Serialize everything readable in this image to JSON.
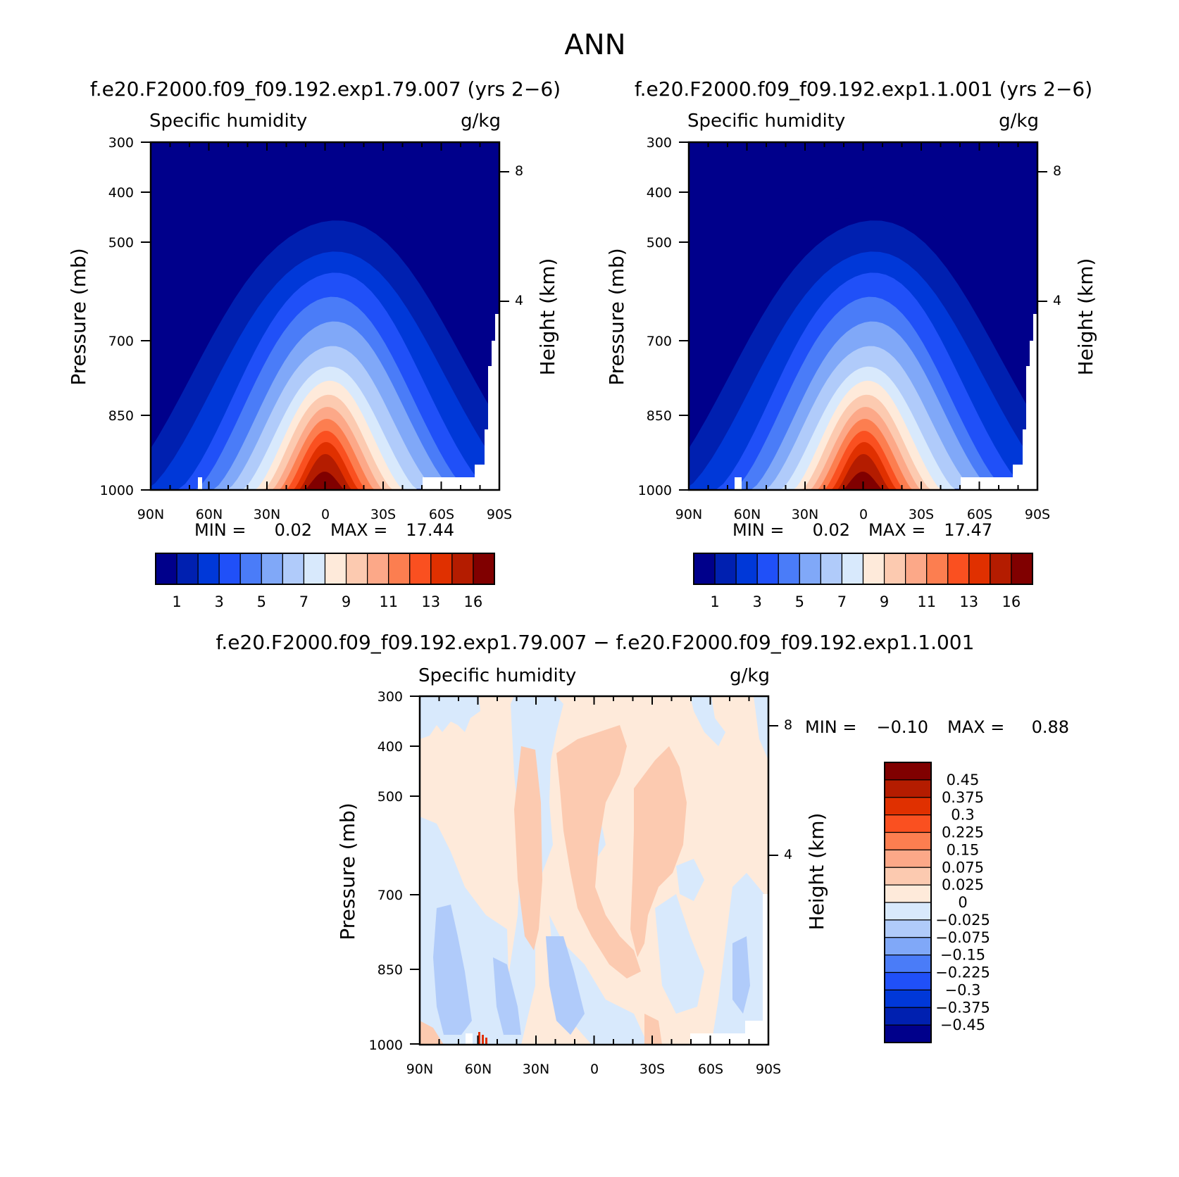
{
  "figure": {
    "title": "ANN",
    "diff_title": "f.e20.F2000.f09_f09.192.exp1.79.007 − f.e20.F2000.f09_f09.192.exp1.1.001"
  },
  "chart_data": [
    {
      "type": "heatmap",
      "title": "f.e20.F2000.f09_f09.192.exp1.79.007 (yrs 2−6)",
      "subtitle_left": "Specific humidity",
      "subtitle_right": "g/kg",
      "ylabel": "Pressure (mb)",
      "ylabel_right": "Height (km)",
      "x_ticks": [
        "90N",
        "60N",
        "30N",
        "0",
        "30S",
        "60S",
        "90S"
      ],
      "y_ticks": [
        "300",
        "400",
        "500",
        "700",
        "850",
        "1000"
      ],
      "y_right_ticks": [
        "8",
        "4"
      ],
      "min_label": "MIN =",
      "min_value": "0.02",
      "max_label": "MAX =",
      "max_value": "17.44",
      "colorbar_labels": [
        "1",
        "3",
        "5",
        "7",
        "9",
        "11",
        "13",
        "16"
      ],
      "peak": 17.44
    },
    {
      "type": "heatmap",
      "title": "f.e20.F2000.f09_f09.192.exp1.1.001 (yrs 2−6)",
      "subtitle_left": "Specific humidity",
      "subtitle_right": "g/kg",
      "ylabel": "Pressure (mb)",
      "ylabel_right": "Height (km)",
      "x_ticks": [
        "90N",
        "60N",
        "30N",
        "0",
        "30S",
        "60S",
        "90S"
      ],
      "y_ticks": [
        "300",
        "400",
        "500",
        "700",
        "850",
        "1000"
      ],
      "y_right_ticks": [
        "8",
        "4"
      ],
      "min_label": "MIN =",
      "min_value": "0.02",
      "max_label": "MAX =",
      "max_value": "17.47",
      "colorbar_labels": [
        "1",
        "3",
        "5",
        "7",
        "9",
        "11",
        "13",
        "16"
      ],
      "peak": 17.47
    },
    {
      "type": "heatmap",
      "title": "f.e20.F2000.f09_f09.192.exp1.79.007 − f.e20.F2000.f09_f09.192.exp1.1.001",
      "subtitle_left": "Specific humidity",
      "subtitle_right": "g/kg",
      "ylabel": "Pressure (mb)",
      "ylabel_right": "Height (km)",
      "x_ticks": [
        "90N",
        "60N",
        "30N",
        "0",
        "30S",
        "60S",
        "90S"
      ],
      "y_ticks": [
        "300",
        "400",
        "500",
        "700",
        "850",
        "1000"
      ],
      "y_right_ticks": [
        "8",
        "4"
      ],
      "min_label": "MIN =",
      "min_value": "−0.10",
      "max_label": "MAX =",
      "max_value": "0.88",
      "colorbar_labels": [
        "0.45",
        "0.375",
        "0.3",
        "0.225",
        "0.15",
        "0.075",
        "0.025",
        "0",
        "−0.025",
        "−0.075",
        "−0.15",
        "−0.225",
        "−0.3",
        "−0.375",
        "−0.45"
      ]
    }
  ],
  "colors": {
    "abs_scale": [
      "#00008b",
      "#0020b0",
      "#0038d8",
      "#2050f8",
      "#4a7cf8",
      "#80a8f8",
      "#b0cbfa",
      "#d8e9fc",
      "#feeada",
      "#fccab0",
      "#fca888",
      "#fc7e50",
      "#fa5020",
      "#e03000",
      "#b41c00",
      "#800000"
    ],
    "diff_scale": [
      "#800000",
      "#b41c00",
      "#e03000",
      "#fa5020",
      "#fc7e50",
      "#fca888",
      "#fccab0",
      "#feeada",
      "#d8e9fc",
      "#b0cbfa",
      "#80a8f8",
      "#4a7cf8",
      "#2050f8",
      "#0038d8",
      "#0020b0",
      "#00008b"
    ]
  }
}
